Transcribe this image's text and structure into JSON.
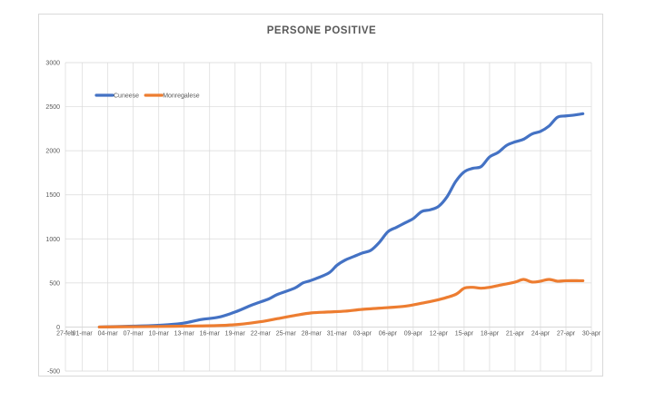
{
  "chart_data": {
    "type": "line",
    "title": "PERSONE POSITIVE",
    "xlabel": "",
    "ylabel": "",
    "ylim": [
      -500,
      3000
    ],
    "yticks": [
      -500,
      0,
      500,
      1000,
      1500,
      2000,
      2500,
      3000
    ],
    "xlim": [
      "27-feb",
      "30-apr"
    ],
    "xticks": [
      "27-feb",
      "01-mar",
      "04-mar",
      "07-mar",
      "10-mar",
      "13-mar",
      "16-mar",
      "19-mar",
      "22-mar",
      "25-mar",
      "28-mar",
      "31-mar",
      "03-apr",
      "06-apr",
      "09-apr",
      "12-apr",
      "15-apr",
      "18-apr",
      "21-apr",
      "24-apr",
      "27-apr",
      "30-apr"
    ],
    "grid": true,
    "legend_position": "top-left",
    "colors": {
      "Cuneese": "#4472c4",
      "Monregalese": "#ed7d31",
      "grid": "#d9d9d9"
    },
    "series": [
      {
        "name": "Cuneese",
        "points": [
          [
            "03-mar",
            0
          ],
          [
            "05-mar",
            5
          ],
          [
            "07-mar",
            10
          ],
          [
            "09-mar",
            15
          ],
          [
            "11-mar",
            25
          ],
          [
            "13-mar",
            45
          ],
          [
            "15-mar",
            85
          ],
          [
            "17-mar",
            110
          ],
          [
            "19-mar",
            170
          ],
          [
            "21-mar",
            250
          ],
          [
            "23-mar",
            320
          ],
          [
            "24-mar",
            370
          ],
          [
            "26-mar",
            440
          ],
          [
            "27-mar",
            500
          ],
          [
            "28-mar",
            530
          ],
          [
            "30-mar",
            610
          ],
          [
            "31-mar",
            700
          ],
          [
            "01-apr",
            760
          ],
          [
            "02-apr",
            800
          ],
          [
            "03-apr",
            840
          ],
          [
            "04-apr",
            870
          ],
          [
            "05-apr",
            960
          ],
          [
            "06-apr",
            1080
          ],
          [
            "07-apr",
            1130
          ],
          [
            "08-apr",
            1180
          ],
          [
            "09-apr",
            1230
          ],
          [
            "10-apr",
            1310
          ],
          [
            "11-apr",
            1330
          ],
          [
            "12-apr",
            1370
          ],
          [
            "13-apr",
            1480
          ],
          [
            "14-apr",
            1650
          ],
          [
            "15-apr",
            1760
          ],
          [
            "16-apr",
            1800
          ],
          [
            "17-apr",
            1820
          ],
          [
            "18-apr",
            1930
          ],
          [
            "19-apr",
            1980
          ],
          [
            "20-apr",
            2060
          ],
          [
            "21-apr",
            2100
          ],
          [
            "22-apr",
            2130
          ],
          [
            "23-apr",
            2190
          ],
          [
            "24-apr",
            2220
          ],
          [
            "25-apr",
            2280
          ],
          [
            "26-apr",
            2380
          ],
          [
            "27-apr",
            2395
          ],
          [
            "28-apr",
            2405
          ],
          [
            "29-apr",
            2420
          ]
        ]
      },
      {
        "name": "Monregalese",
        "points": [
          [
            "03-mar",
            0
          ],
          [
            "06-mar",
            3
          ],
          [
            "09-mar",
            5
          ],
          [
            "12-mar",
            8
          ],
          [
            "15-mar",
            12
          ],
          [
            "18-mar",
            20
          ],
          [
            "20-mar",
            35
          ],
          [
            "22-mar",
            60
          ],
          [
            "24-mar",
            95
          ],
          [
            "26-mar",
            130
          ],
          [
            "28-mar",
            160
          ],
          [
            "30-mar",
            170
          ],
          [
            "01-apr",
            180
          ],
          [
            "03-apr",
            200
          ],
          [
            "06-apr",
            220
          ],
          [
            "08-apr",
            235
          ],
          [
            "10-apr",
            270
          ],
          [
            "12-apr",
            310
          ],
          [
            "14-apr",
            370
          ],
          [
            "15-apr",
            440
          ],
          [
            "16-apr",
            450
          ],
          [
            "17-apr",
            440
          ],
          [
            "18-apr",
            450
          ],
          [
            "19-apr",
            470
          ],
          [
            "21-apr",
            510
          ],
          [
            "22-apr",
            540
          ],
          [
            "23-apr",
            510
          ],
          [
            "24-apr",
            520
          ],
          [
            "25-apr",
            540
          ],
          [
            "26-apr",
            520
          ],
          [
            "27-apr",
            525
          ],
          [
            "29-apr",
            525
          ]
        ]
      }
    ]
  }
}
